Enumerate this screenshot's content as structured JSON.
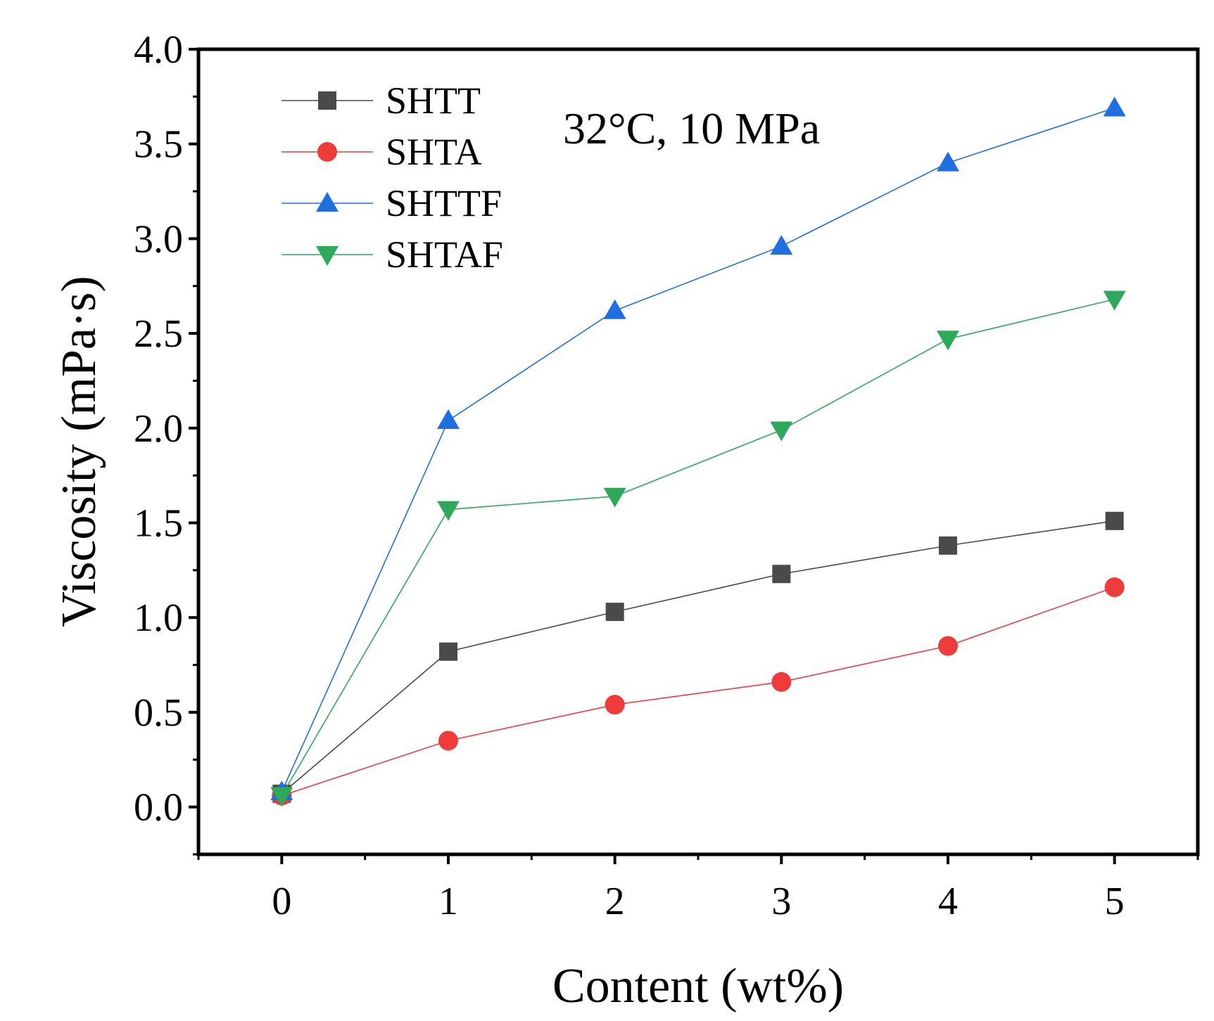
{
  "chart_data": {
    "type": "line",
    "title": "",
    "xlabel": "Content (wt%)",
    "ylabel": "Viscosity (mPa·s)",
    "annotation": "32°C, 10 MPa",
    "x": [
      0,
      1,
      2,
      3,
      4,
      5
    ],
    "x_ticks": [
      "0",
      "1",
      "2",
      "3",
      "4",
      "5"
    ],
    "y_ticks": [
      "0.0",
      "0.5",
      "1.0",
      "1.5",
      "2.0",
      "2.5",
      "3.0",
      "3.5",
      "4.0"
    ],
    "xlim": [
      -0.5,
      5.5
    ],
    "ylim": [
      -0.25,
      4.0
    ],
    "grid": false,
    "legend_position": "top-left",
    "series": [
      {
        "name": "SHTT",
        "color": "#4a4a4a",
        "marker": "square",
        "values": [
          0.07,
          0.82,
          1.03,
          1.23,
          1.38,
          1.51
        ]
      },
      {
        "name": "SHTA",
        "color": "#ee3b3b",
        "marker": "circle",
        "values": [
          0.06,
          0.35,
          0.54,
          0.66,
          0.85,
          1.16
        ]
      },
      {
        "name": "SHTTF",
        "color": "#1f6fe0",
        "marker": "triangle-up",
        "values": [
          0.08,
          2.04,
          2.62,
          2.96,
          3.4,
          3.69
        ]
      },
      {
        "name": "SHTAF",
        "color": "#2ea85b",
        "marker": "triangle-down",
        "values": [
          0.06,
          1.57,
          1.64,
          1.99,
          2.47,
          2.68
        ]
      }
    ]
  }
}
